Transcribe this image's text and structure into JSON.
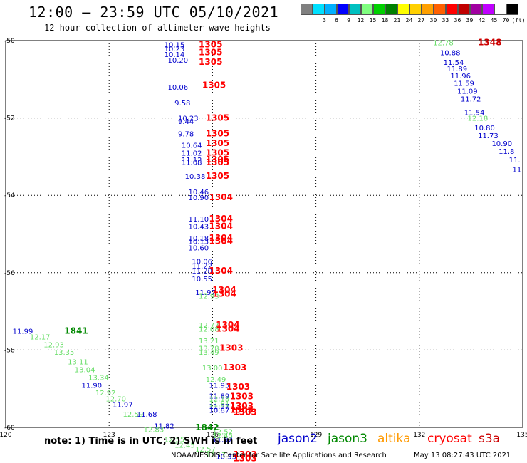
{
  "header": {
    "title": "12:00 – 23:59 UTC 05/10/2021",
    "subtitle": "12 hour collection of altimeter wave heights"
  },
  "scale": {
    "unit": "(ft)",
    "bins": [
      {
        "color": "#808080",
        "label": ""
      },
      {
        "color": "#00e0ff",
        "label": "3"
      },
      {
        "color": "#00b0ff",
        "label": "6"
      },
      {
        "color": "#0000ff",
        "label": "9"
      },
      {
        "color": "#00c0c0",
        "label": "12"
      },
      {
        "color": "#80ff80",
        "label": "15"
      },
      {
        "color": "#00d000",
        "label": "18"
      },
      {
        "color": "#008000",
        "label": "21"
      },
      {
        "color": "#ffff00",
        "label": "24"
      },
      {
        "color": "#ffd000",
        "label": "27"
      },
      {
        "color": "#ffa000",
        "label": "30"
      },
      {
        "color": "#ff6000",
        "label": "33"
      },
      {
        "color": "#ff0000",
        "label": "36"
      },
      {
        "color": "#c00000",
        "label": "39"
      },
      {
        "color": "#a000a0",
        "label": "42"
      },
      {
        "color": "#c000ff",
        "label": "45"
      },
      {
        "color": "#ffffff",
        "label": "70"
      },
      {
        "color": "#000000",
        "label": ""
      }
    ]
  },
  "colors": {
    "jason2": "#0000cc",
    "jason3": "#008800",
    "jason3_light": "#66dd66",
    "altika": "#ff9900",
    "cryosat": "#ff0000",
    "s3a": "#cc0000"
  },
  "axes": {
    "lon_ticks": [
      "120",
      "123",
      "126",
      "129",
      "132",
      "135"
    ],
    "lat_ticks": [
      "-50",
      "-52",
      "-54",
      "-56",
      "-58",
      "-60"
    ],
    "lon_range": [
      120,
      135
    ],
    "lat_range": [
      -50,
      -60
    ]
  },
  "observations": {
    "jason2": [
      {
        "lon": 124.6,
        "lat": -50.1,
        "v": "10.15"
      },
      {
        "lon": 124.6,
        "lat": -50.2,
        "v": "10.23"
      },
      {
        "lon": 124.6,
        "lat": -50.35,
        "v": "10.14"
      },
      {
        "lon": 124.7,
        "lat": -50.5,
        "v": "10.20"
      },
      {
        "lon": 124.7,
        "lat": -51.2,
        "v": "10.06"
      },
      {
        "lon": 124.9,
        "lat": -51.6,
        "v": "9.58"
      },
      {
        "lon": 125.0,
        "lat": -52.0,
        "v": "10.23"
      },
      {
        "lon": 125.0,
        "lat": -52.08,
        "v": "9.44"
      },
      {
        "lon": 125.0,
        "lat": -52.4,
        "v": "9.78"
      },
      {
        "lon": 125.1,
        "lat": -52.7,
        "v": "10.64"
      },
      {
        "lon": 125.1,
        "lat": -52.9,
        "v": "11.02"
      },
      {
        "lon": 125.1,
        "lat": -53.08,
        "v": "11.12"
      },
      {
        "lon": 125.1,
        "lat": -53.14,
        "v": "11.08"
      },
      {
        "lon": 125.2,
        "lat": -53.5,
        "v": "10.38"
      },
      {
        "lon": 125.3,
        "lat": -53.9,
        "v": "10.46"
      },
      {
        "lon": 125.3,
        "lat": -54.05,
        "v": "10.90"
      },
      {
        "lon": 125.3,
        "lat": -54.6,
        "v": "11.10"
      },
      {
        "lon": 125.3,
        "lat": -54.8,
        "v": "10.43"
      },
      {
        "lon": 125.3,
        "lat": -55.1,
        "v": "10.18"
      },
      {
        "lon": 125.3,
        "lat": -55.18,
        "v": "10.13"
      },
      {
        "lon": 125.3,
        "lat": -55.35,
        "v": "10.60"
      },
      {
        "lon": 125.4,
        "lat": -55.7,
        "v": "10.06"
      },
      {
        "lon": 125.4,
        "lat": -55.82,
        "v": "11.22"
      },
      {
        "lon": 125.4,
        "lat": -55.95,
        "v": "11.20"
      },
      {
        "lon": 125.4,
        "lat": -56.15,
        "v": "10.55"
      },
      {
        "lon": 125.5,
        "lat": -56.5,
        "v": "11.97"
      },
      {
        "lon": 125.9,
        "lat": -58.9,
        "v": "11.95"
      },
      {
        "lon": 125.9,
        "lat": -59.18,
        "v": "11.89"
      },
      {
        "lon": 125.9,
        "lat": -59.45,
        "v": "11.37"
      },
      {
        "lon": 125.9,
        "lat": -59.55,
        "v": "10.87"
      },
      {
        "lon": 126.0,
        "lat": -60.3,
        "v": "11.92"
      },
      {
        "lon": 126.1,
        "lat": -60.75,
        "v": "10.33"
      },
      {
        "lon": 120.2,
        "lat": -57.5,
        "v": "11.99"
      },
      {
        "lon": 122.2,
        "lat": -58.9,
        "v": "11.90"
      },
      {
        "lon": 123.1,
        "lat": -59.4,
        "v": "11.97"
      },
      {
        "lon": 123.8,
        "lat": -59.65,
        "v": "11.68"
      },
      {
        "lon": 124.3,
        "lat": -59.95,
        "v": "11.82"
      },
      {
        "lon": 132.6,
        "lat": -50.3,
        "v": "10.88"
      },
      {
        "lon": 132.7,
        "lat": -50.55,
        "v": "11.54"
      },
      {
        "lon": 132.8,
        "lat": -50.72,
        "v": "11.89"
      },
      {
        "lon": 132.9,
        "lat": -50.9,
        "v": "11.96"
      },
      {
        "lon": 133.0,
        "lat": -51.1,
        "v": "11.59"
      },
      {
        "lon": 133.1,
        "lat": -51.3,
        "v": "11.09"
      },
      {
        "lon": 133.2,
        "lat": -51.5,
        "v": "11.72"
      },
      {
        "lon": 133.3,
        "lat": -51.85,
        "v": "11.54"
      },
      {
        "lon": 133.6,
        "lat": -52.25,
        "v": "10.80"
      },
      {
        "lon": 133.7,
        "lat": -52.45,
        "v": "11.73"
      },
      {
        "lon": 134.1,
        "lat": -52.65,
        "v": "10.90"
      },
      {
        "lon": 134.3,
        "lat": -52.85,
        "v": "11.8"
      },
      {
        "lon": 134.6,
        "lat": -53.08,
        "v": "11."
      },
      {
        "lon": 134.7,
        "lat": -53.32,
        "v": "11"
      }
    ],
    "jason3_light": [
      {
        "lon": 132.4,
        "lat": -50.05,
        "v": "12.78"
      },
      {
        "lon": 133.4,
        "lat": -52.0,
        "v": "12.18"
      },
      {
        "lon": 125.6,
        "lat": -56.6,
        "v": "12.93"
      },
      {
        "lon": 125.6,
        "lat": -57.35,
        "v": "12.77"
      },
      {
        "lon": 125.6,
        "lat": -57.45,
        "v": "12.08"
      },
      {
        "lon": 125.6,
        "lat": -57.75,
        "v": "13.21"
      },
      {
        "lon": 125.6,
        "lat": -57.95,
        "v": "13.78"
      },
      {
        "lon": 125.6,
        "lat": -58.05,
        "v": "13.49"
      },
      {
        "lon": 125.7,
        "lat": -58.45,
        "v": "13.00"
      },
      {
        "lon": 125.8,
        "lat": -58.75,
        "v": "12.49"
      },
      {
        "lon": 125.9,
        "lat": -59.25,
        "v": "12.18"
      },
      {
        "lon": 125.9,
        "lat": -59.38,
        "v": "11.81"
      },
      {
        "lon": 126.0,
        "lat": -60.1,
        "v": "12.52"
      },
      {
        "lon": 126.0,
        "lat": -60.2,
        "v": "12.45"
      },
      {
        "lon": 125.5,
        "lat": -60.55,
        "v": "12.57"
      },
      {
        "lon": 125.8,
        "lat": -60.7,
        "v": "12.17"
      },
      {
        "lon": 120.7,
        "lat": -57.65,
        "v": "12.17"
      },
      {
        "lon": 121.1,
        "lat": -57.85,
        "v": "12.93"
      },
      {
        "lon": 121.4,
        "lat": -58.05,
        "v": "13.35"
      },
      {
        "lon": 121.8,
        "lat": -58.3,
        "v": "13.11"
      },
      {
        "lon": 122.0,
        "lat": -58.5,
        "v": "13.04"
      },
      {
        "lon": 122.4,
        "lat": -58.7,
        "v": "13.34"
      },
      {
        "lon": 122.6,
        "lat": -59.1,
        "v": "12.92"
      },
      {
        "lon": 122.9,
        "lat": -59.25,
        "v": "12.70"
      },
      {
        "lon": 123.4,
        "lat": -59.65,
        "v": "12.59"
      },
      {
        "lon": 124.0,
        "lat": -60.05,
        "v": "12.83"
      },
      {
        "lon": 124.6,
        "lat": -60.3,
        "v": "12.55"
      },
      {
        "lon": 124.9,
        "lat": -60.45,
        "v": "12.45"
      }
    ],
    "jason3_cycle": [
      {
        "lon": 121.7,
        "lat": -57.5,
        "v": "1841"
      },
      {
        "lon": 125.5,
        "lat": -60.0,
        "v": "1842"
      }
    ],
    "cryosat": [
      {
        "lon": 125.6,
        "lat": -50.1,
        "v": "1305"
      },
      {
        "lon": 125.6,
        "lat": -50.3,
        "v": "1305"
      },
      {
        "lon": 125.6,
        "lat": -50.55,
        "v": "1305"
      },
      {
        "lon": 125.7,
        "lat": -51.15,
        "v": "1305"
      },
      {
        "lon": 125.8,
        "lat": -52.0,
        "v": "1305"
      },
      {
        "lon": 125.8,
        "lat": -52.4,
        "v": "1305"
      },
      {
        "lon": 125.8,
        "lat": -52.65,
        "v": "1305"
      },
      {
        "lon": 125.8,
        "lat": -52.9,
        "v": "1305"
      },
      {
        "lon": 125.8,
        "lat": -53.08,
        "v": "1305"
      },
      {
        "lon": 125.8,
        "lat": -53.15,
        "v": "1305"
      },
      {
        "lon": 125.8,
        "lat": -53.5,
        "v": "1305"
      },
      {
        "lon": 125.9,
        "lat": -54.05,
        "v": "1304"
      },
      {
        "lon": 125.9,
        "lat": -54.6,
        "v": "1304"
      },
      {
        "lon": 125.9,
        "lat": -54.8,
        "v": "1304"
      },
      {
        "lon": 125.9,
        "lat": -55.1,
        "v": "1304"
      },
      {
        "lon": 125.9,
        "lat": -55.18,
        "v": "1304"
      },
      {
        "lon": 125.9,
        "lat": -55.95,
        "v": "1304"
      },
      {
        "lon": 126.0,
        "lat": -56.45,
        "v": "1304"
      },
      {
        "lon": 126.0,
        "lat": -56.55,
        "v": "1304"
      },
      {
        "lon": 126.1,
        "lat": -57.35,
        "v": "1304"
      },
      {
        "lon": 126.1,
        "lat": -57.45,
        "v": "1304"
      },
      {
        "lon": 126.2,
        "lat": -57.95,
        "v": "1303"
      },
      {
        "lon": 126.3,
        "lat": -58.45,
        "v": "1303"
      },
      {
        "lon": 126.4,
        "lat": -58.95,
        "v": "1303"
      },
      {
        "lon": 126.5,
        "lat": -59.2,
        "v": "1303"
      },
      {
        "lon": 126.5,
        "lat": -59.45,
        "v": "1303"
      },
      {
        "lon": 126.5,
        "lat": -59.55,
        "v": "1303"
      },
      {
        "lon": 126.6,
        "lat": -59.6,
        "v": "1303"
      },
      {
        "lon": 126.6,
        "lat": -60.7,
        "v": "1303"
      },
      {
        "lon": 126.6,
        "lat": -60.8,
        "v": "1303"
      }
    ],
    "s3a": [
      {
        "lon": 133.7,
        "lat": -50.05,
        "v": "1348"
      }
    ]
  },
  "footer": {
    "note": "note: 1) Time is in UTC; 2) SWH is in feet",
    "credit": "NOAA/NESDIS Center for Satellite Applications and Research",
    "timestamp": "May 13 08:27:43 UTC 2021"
  },
  "legend": {
    "jason2": "jason2",
    "jason3": "jason3",
    "altika": "altika",
    "cryosat": "cryosat",
    "s3a": "s3a"
  }
}
